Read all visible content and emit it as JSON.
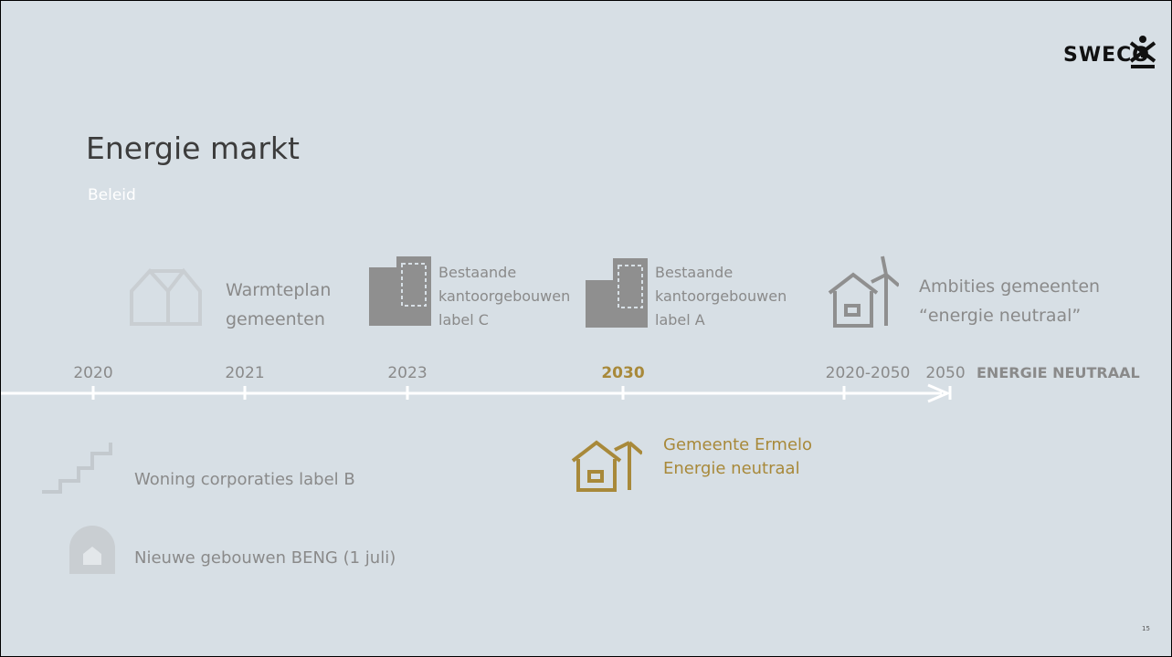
{
  "logo": "SWECO",
  "title": "Energie markt",
  "subtitle": "Beleid",
  "timeline": [
    {
      "year": "2020"
    },
    {
      "year": "2021"
    },
    {
      "year": "2023"
    },
    {
      "year": "2030"
    },
    {
      "year": "2020-2050"
    },
    {
      "year": "2050",
      "note": "ENERGIE NEUTRAAL"
    }
  ],
  "above": [
    {
      "lines": [
        "Warmteplan",
        "gemeenten"
      ]
    },
    {
      "lines": [
        "Bestaande",
        "kantoorgebouwen",
        "label C"
      ]
    },
    {
      "lines": [
        "Bestaande",
        "kantoorgebouwen",
        "label A"
      ]
    },
    {
      "lines": [
        "Ambities gemeenten",
        "“energie neutraal”"
      ]
    }
  ],
  "below": [
    {
      "lines": [
        "Gemeente Ermelo",
        "Energie neutraal"
      ]
    },
    {
      "lines": [
        "Woning corporaties label B"
      ]
    },
    {
      "lines": [
        "Nieuwe gebouwen BENG (1 juli)"
      ]
    }
  ],
  "page_number": "15"
}
